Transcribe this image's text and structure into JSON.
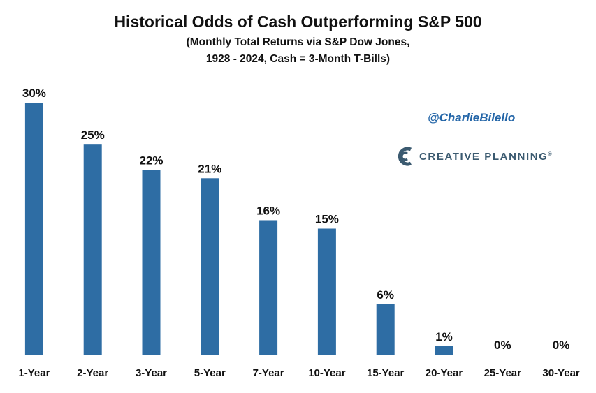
{
  "chart_data": {
    "type": "bar",
    "title": "Historical Odds of Cash Outperforming S&P 500",
    "subtitle_line1": "(Monthly Total Returns via S&P Dow Jones,",
    "subtitle_line2": "1928 - 2024, Cash = 3-Month T-Bills)",
    "categories": [
      "1-Year",
      "2-Year",
      "3-Year",
      "5-Year",
      "7-Year",
      "10-Year",
      "15-Year",
      "20-Year",
      "25-Year",
      "30-Year"
    ],
    "values": [
      30,
      25,
      22,
      21,
      16,
      15,
      6,
      1,
      0,
      0
    ],
    "value_labels": [
      "30%",
      "25%",
      "22%",
      "21%",
      "16%",
      "15%",
      "6%",
      "1%",
      "0%",
      "0%"
    ],
    "xlabel": "",
    "ylabel": "",
    "ylim": [
      0,
      30
    ],
    "grid": false,
    "legend": "none"
  },
  "watermark": {
    "handle": "@CharlieBilello",
    "brand": "CREATIVE PLANNING",
    "brand_mark": "®"
  },
  "colors": {
    "bar": "#2E6DA4",
    "handle": "#2466A8",
    "brand": "#3B5A70",
    "axis": "#BFBFBF"
  }
}
